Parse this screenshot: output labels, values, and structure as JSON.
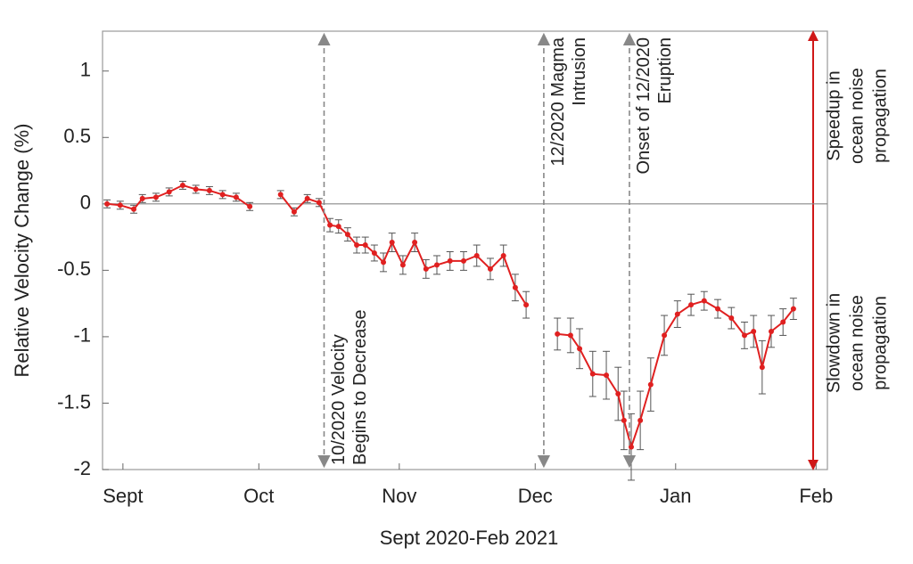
{
  "chart_data": {
    "type": "scatter",
    "xlabel": "Sept 2020-Feb 2021",
    "ylabel": "Relative Velocity Change (%)",
    "xlim": [
      -4.5,
      155.5
    ],
    "ylim": [
      -2,
      1.3
    ],
    "xticks": [
      {
        "value": 0,
        "label": "Sept"
      },
      {
        "value": 30,
        "label": "Oct"
      },
      {
        "value": 61,
        "label": "Nov"
      },
      {
        "value": 91,
        "label": "Dec"
      },
      {
        "value": 122,
        "label": "Jan"
      },
      {
        "value": 153,
        "label": "Feb"
      }
    ],
    "yticks": [
      1,
      0.5,
      0,
      -0.5,
      -1,
      -1.5,
      -2
    ],
    "color": "#e02020",
    "x": [
      -3.5,
      -0.6,
      2.4,
      4.3,
      7.3,
      10.2,
      13.2,
      16.1,
      19.1,
      22,
      25,
      28,
      31,
      34.8,
      37.8,
      40.7,
      43.3,
      45.7,
      47.6,
      49.6,
      51.6,
      53.5,
      55.5,
      57.5,
      59.4,
      61.8,
      64.4,
      66.9,
      69.3,
      72.2,
      75.2,
      78.1,
      81.1,
      84,
      86.6,
      89,
      92,
      95.9,
      98.8,
      100.8,
      103.7,
      106.7,
      109.3,
      110.6,
      112.2,
      114.2,
      116.5,
      119.5,
      122.4,
      125.4,
      128.3,
      131.3,
      134.3,
      137.2,
      139.2,
      141.1,
      143.1,
      145.7,
      148
    ],
    "values": [
      0,
      -0.01,
      -0.04,
      0.04,
      0.05,
      0.09,
      0.14,
      0.11,
      0.1,
      0.07,
      0.05,
      -0.02,
      null,
      0.07,
      -0.06,
      0.04,
      0.01,
      -0.16,
      -0.17,
      -0.23,
      -0.31,
      -0.31,
      -0.37,
      -0.44,
      -0.29,
      -0.46,
      -0.29,
      -0.49,
      -0.46,
      -0.43,
      -0.43,
      -0.39,
      -0.49,
      -0.39,
      -0.63,
      -0.76,
      null,
      -0.98,
      -0.99,
      -1.09,
      -1.28,
      -1.29,
      -1.43,
      -1.63,
      -1.83,
      -1.63,
      -1.36,
      -0.99,
      -0.83,
      -0.76,
      -0.73,
      -0.79,
      -0.86,
      -0.99,
      -0.96,
      -1.23,
      -0.96,
      -0.89,
      -0.79
    ],
    "errors": [
      0.03,
      0.03,
      0.03,
      0.03,
      0.03,
      0.03,
      0.03,
      0.03,
      0.03,
      0.03,
      0.03,
      0.03,
      null,
      0.03,
      0.03,
      0.03,
      0.03,
      0.05,
      0.05,
      0.05,
      0.06,
      0.06,
      0.06,
      0.07,
      0.07,
      0.07,
      0.07,
      0.07,
      0.07,
      0.07,
      0.07,
      0.08,
      0.08,
      0.08,
      0.1,
      0.1,
      null,
      0.12,
      0.13,
      0.15,
      0.17,
      0.18,
      0.2,
      0.22,
      0.25,
      0.22,
      0.2,
      0.15,
      0.1,
      0.08,
      0.07,
      0.07,
      0.08,
      0.1,
      0.12,
      0.2,
      0.12,
      0.1,
      0.08
    ],
    "hline": 0,
    "events": [
      {
        "x": 44.4,
        "lines": [
          "10/2020 Velocity",
          "Begins to Decrease"
        ]
      },
      {
        "x": 92.9,
        "lines": [
          "12/2020 Magma",
          "Intrusion"
        ]
      },
      {
        "x": 111.8,
        "lines": [
          "Onset of 12/2020",
          "Eruption"
        ]
      }
    ],
    "side_labels": [
      {
        "lines": [
          "Speedup in",
          "ocean noise",
          "propagation"
        ]
      },
      {
        "lines": [
          "Slowdown in",
          "ocean noise",
          "propagation"
        ]
      }
    ]
  }
}
